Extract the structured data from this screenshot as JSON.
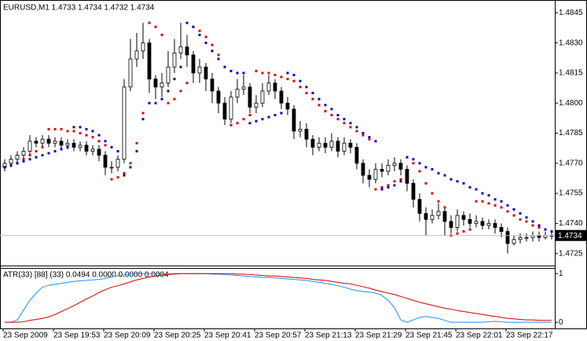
{
  "chart_data": [
    {
      "type": "candlestick",
      "title": "EURUSD,M1  1.4733 1.4734 1.4732 1.4734",
      "categories": [
        "23 Sep 2009",
        null,
        null,
        null,
        null,
        null,
        null,
        null,
        "23 Sep 19:53",
        null,
        null,
        null,
        null,
        null,
        null,
        null,
        "23 Sep 20:09",
        null,
        null,
        null,
        null,
        null,
        null,
        null,
        "23 Sep 20:25",
        null,
        null,
        null,
        null,
        null,
        null,
        null,
        "23 Sep 20:41",
        null,
        null,
        null,
        null,
        null,
        null,
        null,
        "23 Sep 20:57",
        null,
        null,
        null,
        null,
        null,
        null,
        null,
        "23 Sep 21:13",
        null,
        null,
        null,
        null,
        null,
        null,
        null,
        "23 Sep 21:29",
        null,
        null,
        null,
        null,
        null,
        null,
        null,
        "23 Sep 21:45",
        null,
        null,
        null,
        null,
        null,
        null,
        null,
        "23 Sep 22:01",
        null,
        null,
        null,
        null,
        null,
        null,
        null,
        "23 Sep 22:17",
        null,
        null,
        null,
        null,
        null,
        null,
        null
      ],
      "open": [
        1.4768,
        1.477,
        1.4772,
        1.4774,
        1.4776,
        1.4781,
        1.478,
        1.4782,
        1.478,
        1.4781,
        1.4779,
        1.478,
        1.4778,
        1.4779,
        1.4776,
        1.4777,
        1.4774,
        1.4768,
        1.4768,
        1.4772,
        1.4808,
        1.4822,
        1.4826,
        1.483,
        1.4812,
        1.4808,
        1.481,
        1.4818,
        1.4825,
        1.4828,
        1.4824,
        1.4815,
        1.4818,
        1.4812,
        1.4806,
        1.48,
        1.4792,
        1.4803,
        1.4807,
        1.4808,
        1.4798,
        1.48,
        1.4806,
        1.481,
        1.4806,
        1.48,
        1.4797,
        1.4786,
        1.4787,
        1.4782,
        1.4778,
        1.478,
        1.4778,
        1.4781,
        1.4776,
        1.478,
        1.4778,
        1.477,
        1.4764,
        1.4762,
        1.4767,
        1.4766,
        1.4769,
        1.477,
        1.4767,
        1.476,
        1.4752,
        1.4745,
        1.4742,
        1.4744,
        1.4746,
        1.4741,
        1.4738,
        1.4744,
        1.4742,
        1.474,
        1.4741,
        1.4739,
        1.474,
        1.4738,
        1.4736,
        1.473,
        1.4732,
        1.4733,
        1.4733,
        1.4734,
        1.4733,
        1.4734
      ],
      "high": [
        1.4772,
        1.4774,
        1.4776,
        1.4778,
        1.4784,
        1.4783,
        1.4784,
        1.4784,
        1.4783,
        1.4783,
        1.4782,
        1.4782,
        1.4781,
        1.4781,
        1.4779,
        1.4779,
        1.4776,
        1.4771,
        1.4774,
        1.4812,
        1.4832,
        1.4835,
        1.484,
        1.4832,
        1.4814,
        1.4815,
        1.4826,
        1.4832,
        1.484,
        1.4834,
        1.4826,
        1.4822,
        1.482,
        1.4815,
        1.4808,
        1.4803,
        1.4806,
        1.4812,
        1.4814,
        1.481,
        1.4804,
        1.481,
        1.4814,
        1.4812,
        1.4808,
        1.4803,
        1.4799,
        1.4791,
        1.479,
        1.4784,
        1.4783,
        1.4783,
        1.4785,
        1.4783,
        1.4783,
        1.4782,
        1.478,
        1.4772,
        1.4767,
        1.477,
        1.477,
        1.4772,
        1.4773,
        1.4772,
        1.4769,
        1.4762,
        1.4755,
        1.4748,
        1.4747,
        1.475,
        1.4748,
        1.4744,
        1.4747,
        1.4746,
        1.4745,
        1.4744,
        1.4743,
        1.4742,
        1.4742,
        1.474,
        1.4738,
        1.4734,
        1.4735,
        1.4735,
        1.4736,
        1.4736,
        1.4736,
        1.4736
      ],
      "low": [
        1.4766,
        1.4768,
        1.477,
        1.4772,
        1.4774,
        1.4778,
        1.4778,
        1.4778,
        1.4778,
        1.4777,
        1.4777,
        1.4776,
        1.4776,
        1.4774,
        1.4774,
        1.4771,
        1.4764,
        1.4765,
        1.4766,
        1.477,
        1.4806,
        1.4818,
        1.4822,
        1.4805,
        1.4802,
        1.4803,
        1.4808,
        1.4815,
        1.4822,
        1.4818,
        1.481,
        1.481,
        1.4806,
        1.48,
        1.4795,
        1.4789,
        1.479,
        1.48,
        1.4804,
        1.4795,
        1.4795,
        1.4798,
        1.4804,
        1.4802,
        1.4797,
        1.4794,
        1.4782,
        1.4783,
        1.4778,
        1.4774,
        1.4776,
        1.4775,
        1.4776,
        1.4773,
        1.4774,
        1.4775,
        1.4767,
        1.476,
        1.4758,
        1.476,
        1.4763,
        1.4764,
        1.4766,
        1.4764,
        1.4756,
        1.4748,
        1.4741,
        1.4734,
        1.474,
        1.4742,
        1.4734,
        1.4735,
        1.4736,
        1.4739,
        1.4738,
        1.4738,
        1.4737,
        1.4737,
        1.4735,
        1.4733,
        1.4725,
        1.4729,
        1.473,
        1.4731,
        1.4731,
        1.4731,
        1.4732,
        1.4732
      ],
      "close": [
        1.477,
        1.4772,
        1.4774,
        1.4776,
        1.4781,
        1.478,
        1.4782,
        1.478,
        1.4781,
        1.4779,
        1.478,
        1.4778,
        1.4779,
        1.4776,
        1.4777,
        1.4774,
        1.4768,
        1.4768,
        1.4772,
        1.4808,
        1.4822,
        1.4826,
        1.483,
        1.4812,
        1.4808,
        1.481,
        1.4818,
        1.4825,
        1.4828,
        1.4824,
        1.4815,
        1.4818,
        1.4812,
        1.4806,
        1.48,
        1.4792,
        1.4803,
        1.4807,
        1.4808,
        1.4798,
        1.48,
        1.4806,
        1.481,
        1.4806,
        1.48,
        1.4797,
        1.4786,
        1.4787,
        1.4782,
        1.4778,
        1.478,
        1.4778,
        1.4781,
        1.4776,
        1.478,
        1.4778,
        1.477,
        1.4764,
        1.4762,
        1.4767,
        1.4766,
        1.4769,
        1.477,
        1.4767,
        1.476,
        1.4752,
        1.4745,
        1.4742,
        1.4744,
        1.4746,
        1.4741,
        1.4738,
        1.4744,
        1.4742,
        1.474,
        1.4741,
        1.4739,
        1.474,
        1.4738,
        1.4736,
        1.473,
        1.4732,
        1.4733,
        1.4733,
        1.4734,
        1.4733,
        1.4734,
        1.4734
      ],
      "color": "#000000",
      "series": [
        {
          "color": "#e00000",
          "values": [
            1.4768,
            1.4769,
            1.477,
            1.4772,
            1.4774,
            1.4776,
            1.4778,
            1.4787,
            1.4787,
            1.4787,
            1.4786,
            1.4786,
            1.4785,
            1.4784,
            1.4783,
            1.4781,
            1.4779,
            1.4762,
            1.4763,
            1.4765,
            1.477,
            1.478,
            1.4795,
            1.484,
            1.4838,
            1.4834,
            1.48,
            1.4802,
            1.4806,
            1.481,
            1.4838,
            1.4836,
            1.4833,
            1.4829,
            1.4824,
            1.4818,
            1.4789,
            1.479,
            1.4792,
            1.4794,
            1.4816,
            1.4815,
            1.4815,
            1.4814,
            1.4813,
            1.4812,
            1.4811,
            1.4808,
            1.4805,
            1.4802,
            1.4799,
            1.4796,
            1.4794,
            1.4792,
            1.479,
            1.4788,
            1.4786,
            1.4784,
            1.4782,
            1.4757,
            1.4758,
            1.4759,
            1.4761,
            1.4762,
            1.4773,
            1.477,
            1.4766,
            1.476,
            1.4755,
            1.4751,
            1.4748,
            1.4734,
            1.4735,
            1.4736,
            1.4737,
            1.4751,
            1.4751,
            1.475,
            1.4749,
            1.4748,
            1.4746,
            1.4744,
            1.4742,
            1.4741,
            1.4739,
            1.4738,
            1.4737,
            1.4736
          ]
        },
        {
          "color": "#0000c8",
          "values": [
            1.4768,
            1.4769,
            1.477,
            1.4771,
            1.4772,
            1.4773,
            1.4774,
            1.4775,
            1.4776,
            1.4777,
            1.4778,
            1.4788,
            1.4788,
            1.4787,
            1.4786,
            1.4784,
            1.4781,
            1.4778,
            1.4776,
            1.4764,
            1.4768,
            1.4776,
            1.4792,
            1.48,
            1.48,
            1.4802,
            1.4806,
            1.4812,
            1.4818,
            1.484,
            1.4838,
            1.4834,
            1.483,
            1.4826,
            1.4822,
            1.4818,
            1.4816,
            1.4815,
            1.4815,
            1.479,
            1.4791,
            1.4792,
            1.4793,
            1.4794,
            1.4795,
            1.4815,
            1.4814,
            1.4811,
            1.4808,
            1.4805,
            1.4802,
            1.4799,
            1.4797,
            1.4794,
            1.4792,
            1.479,
            1.4788,
            1.4785,
            1.4783,
            1.4781,
            1.4757,
            1.4758,
            1.4759,
            1.4761,
            1.4773,
            1.4772,
            1.477,
            1.4768,
            1.4767,
            1.4765,
            1.4764,
            1.4762,
            1.4761,
            1.476,
            1.4758,
            1.4757,
            1.4755,
            1.4754,
            1.4752,
            1.4751,
            1.4749,
            1.4747,
            1.4745,
            1.4743,
            1.4741,
            1.4739,
            1.4737,
            1.4736
          ]
        }
      ],
      "current_price": 1.4734,
      "ylim": [
        1.4719,
        1.4851
      ],
      "yticks": [
        1.4845,
        {
          "value": 1.483,
          "label": "1.4830"
        },
        1.4815,
        {
          "value": 1.48,
          "label": "1.4800"
        },
        1.4785,
        {
          "value": 1.477,
          "label": "1.4770"
        },
        1.4755,
        {
          "value": 1.474,
          "label": "1.4740"
        },
        1.4725
      ]
    },
    {
      "type": "line",
      "title": "ATR(33) [88] (33) 0.0494 0.0000 0.0000 0.0004",
      "series": [
        {
          "color": "#1e90ff",
          "values": [
            0,
            0,
            0.05,
            0.25,
            0.45,
            0.6,
            0.72,
            0.76,
            0.78,
            0.8,
            0.82,
            0.84,
            0.85,
            0.86,
            0.87,
            0.88,
            0.9,
            0.93,
            0.95,
            0.97,
            0.99,
            1,
            1,
            1,
            1,
            1,
            1,
            1,
            1,
            1,
            1,
            1,
            1,
            0.99,
            0.99,
            0.98,
            0.97,
            0.96,
            0.95,
            0.94,
            0.93,
            0.92,
            0.92,
            0.91,
            0.9,
            0.89,
            0.88,
            0.87,
            0.86,
            0.84,
            0.82,
            0.8,
            0.78,
            0.75,
            0.72,
            0.68,
            0.65,
            0.63,
            0.62,
            0.6,
            0.55,
            0.45,
            0.3,
            0.05,
            0,
            0.05,
            0.1,
            0.12,
            0.1,
            0.08,
            0.04,
            0,
            0,
            0,
            0,
            0,
            0,
            0.01,
            0.02,
            0.01,
            0,
            0,
            0,
            0,
            0,
            0,
            0,
            0
          ]
        },
        {
          "color": "#d00000",
          "values": [
            0,
            0,
            0,
            0.01,
            0.04,
            0.06,
            0.08,
            0.11,
            0.16,
            0.22,
            0.28,
            0.34,
            0.41,
            0.48,
            0.54,
            0.61,
            0.67,
            0.72,
            0.75,
            0.79,
            0.83,
            0.87,
            0.9,
            0.93,
            0.95,
            0.97,
            0.98,
            0.99,
            1,
            1,
            1,
            1,
            1,
            1,
            1,
            1,
            1,
            0.99,
            0.99,
            0.98,
            0.97,
            0.96,
            0.95,
            0.95,
            0.94,
            0.93,
            0.92,
            0.91,
            0.9,
            0.88,
            0.87,
            0.86,
            0.84,
            0.82,
            0.8,
            0.79,
            0.76,
            0.73,
            0.7,
            0.66,
            0.63,
            0.6,
            0.57,
            0.53,
            0.49,
            0.45,
            0.41,
            0.38,
            0.35,
            0.32,
            0.29,
            0.27,
            0.24,
            0.22,
            0.2,
            0.18,
            0.16,
            0.14,
            0.12,
            0.1,
            0.08,
            0.07,
            0.06,
            0.05,
            0.05,
            0.04,
            0.04,
            0.04
          ]
        }
      ],
      "ylim": [
        -0.11,
        1.1
      ],
      "yticks": [
        0,
        1
      ]
    }
  ]
}
